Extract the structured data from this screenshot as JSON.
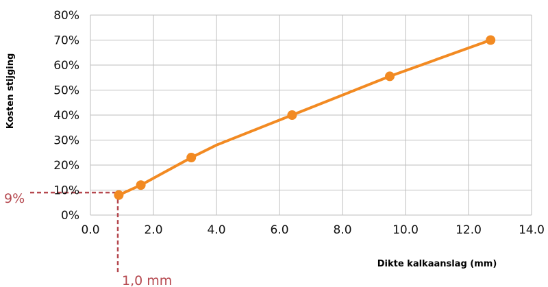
{
  "chart_data": {
    "type": "line",
    "xlabel": "Dikte kalkaanslag (mm)",
    "ylabel": "Kosten stijging",
    "xlim": [
      0,
      14
    ],
    "ylim": [
      0,
      80
    ],
    "x_ticks": [
      "0.0",
      "2.0",
      "4.0",
      "6.0",
      "8.0",
      "10.0",
      "12.0",
      "14.0"
    ],
    "y_ticks": [
      "0%",
      "10%",
      "20%",
      "30%",
      "40%",
      "50%",
      "60%",
      "70%",
      "80%"
    ],
    "grid": true,
    "series": [
      {
        "color": "#f28a22",
        "line_points": [
          {
            "x": 0.9,
            "y": 8
          },
          {
            "x": 1.6,
            "y": 12
          },
          {
            "x": 3.2,
            "y": 23
          },
          {
            "x": 4.0,
            "y": 28
          },
          {
            "x": 6.4,
            "y": 40
          },
          {
            "x": 9.5,
            "y": 55.5
          },
          {
            "x": 12.7,
            "y": 70
          }
        ],
        "markers": [
          {
            "x": 0.9,
            "y": 8
          },
          {
            "x": 1.6,
            "y": 12
          },
          {
            "x": 3.2,
            "y": 23
          },
          {
            "x": 6.4,
            "y": 40
          },
          {
            "x": 9.5,
            "y": 55.5
          },
          {
            "x": 12.7,
            "y": 70
          }
        ]
      }
    ],
    "annotations": {
      "color": "#b5484f",
      "ref_x": 1.0,
      "ref_y": 9,
      "y_label": "9%",
      "x_label": "1,0 mm"
    }
  }
}
